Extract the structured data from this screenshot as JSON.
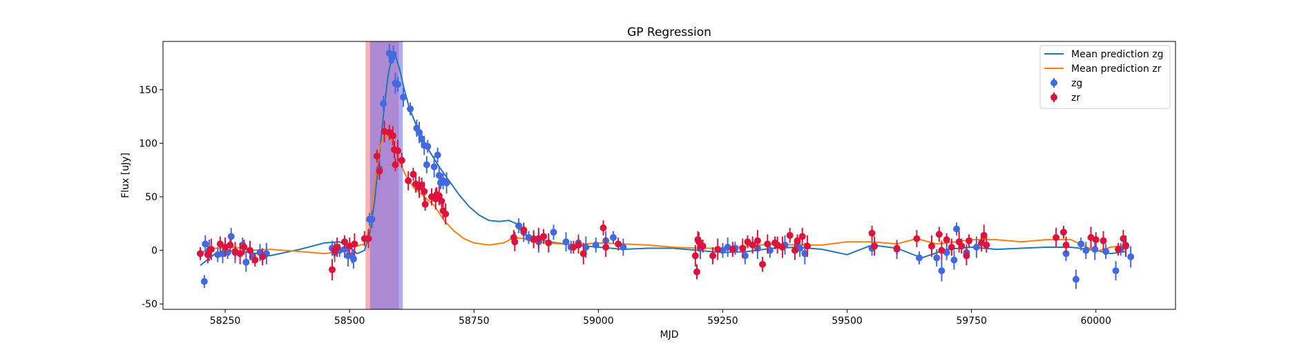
{
  "chart_data": {
    "type": "scatter",
    "title": "GP Regression",
    "xlabel": "MJD",
    "ylabel": "Flux [uJy]",
    "xlim": [
      58125,
      60160
    ],
    "ylim": [
      -55,
      195
    ],
    "x_ticks": [
      58250,
      58500,
      58750,
      59000,
      59250,
      59500,
      59750,
      60000
    ],
    "y_ticks": [
      -50,
      0,
      50,
      100,
      150
    ],
    "grid": false,
    "legend_position": "top-right",
    "highlight_bands": [
      {
        "band": "zr",
        "x": [
          58532,
          58599
        ],
        "color": "#ff6f6f",
        "opacity": 0.55
      },
      {
        "band": "zg",
        "x": [
          58541,
          58607
        ],
        "color": "#6a6af0",
        "opacity": 0.55
      }
    ],
    "series": [
      {
        "name": "Mean prediction zg",
        "kind": "line",
        "color": "#1f77b4",
        "x": [
          58200,
          58230,
          58270,
          58300,
          58340,
          58400,
          58450,
          58480,
          58500,
          58515,
          58530,
          58540,
          58550,
          58560,
          58570,
          58578,
          58585,
          58592,
          58600,
          58610,
          58620,
          58640,
          58660,
          58680,
          58700,
          58720,
          58740,
          58760,
          58780,
          58800,
          58820,
          58835,
          58850,
          58870,
          58900,
          58950,
          59000,
          59050,
          59100,
          59150,
          59200,
          59250,
          59300,
          59350,
          59400,
          59450,
          59500,
          59550,
          59600,
          59650,
          59700,
          59750,
          59800,
          59850,
          59900,
          59950,
          60000,
          60030,
          60060
        ],
        "y": [
          -14,
          -3,
          0,
          -2,
          -5,
          1,
          7,
          8,
          3,
          -3,
          0,
          15,
          45,
          90,
          135,
          165,
          180,
          182,
          170,
          150,
          133,
          110,
          93,
          78,
          65,
          52,
          41,
          33,
          28,
          27,
          28,
          25,
          15,
          12,
          8,
          5,
          3,
          1,
          2,
          2,
          0,
          -2,
          -1,
          2,
          3,
          1,
          -4,
          5,
          2,
          -7,
          1,
          3,
          1,
          2,
          3,
          3,
          0,
          -3,
          -1
        ]
      },
      {
        "name": "Mean prediction zr",
        "kind": "line",
        "color": "#ff7f0e",
        "x": [
          58200,
          58230,
          58270,
          58300,
          58340,
          58400,
          58450,
          58480,
          58500,
          58515,
          58530,
          58540,
          58550,
          58560,
          58570,
          58580,
          58590,
          58600,
          58615,
          58630,
          58650,
          58670,
          58690,
          58710,
          58730,
          58750,
          58780,
          58810,
          58830,
          58850,
          58870,
          58900,
          58950,
          59000,
          59050,
          59100,
          59150,
          59200,
          59250,
          59300,
          59350,
          59400,
          59450,
          59500,
          59550,
          59600,
          59640,
          59680,
          59720,
          59750,
          59800,
          59850,
          59900,
          59950,
          60000,
          60030,
          60060
        ],
        "y": [
          -2,
          2,
          3,
          0,
          1,
          -1,
          -3,
          -1,
          3,
          4,
          6,
          20,
          60,
          95,
          108,
          106,
          97,
          83,
          68,
          58,
          50,
          42,
          28,
          18,
          11,
          7,
          5,
          7,
          12,
          11,
          8,
          7,
          5,
          7,
          6,
          5,
          3,
          2,
          2,
          4,
          6,
          5,
          5,
          8,
          8,
          6,
          11,
          6,
          8,
          10,
          10,
          8,
          10,
          10,
          -1,
          3,
          5
        ]
      },
      {
        "name": "zg",
        "kind": "points",
        "color": "#4169e1",
        "points": [
          [
            58208,
            -29
          ],
          [
            58210,
            6
          ],
          [
            58218,
            0
          ],
          [
            58235,
            -4
          ],
          [
            58245,
            -3
          ],
          [
            58255,
            -2
          ],
          [
            58262,
            13
          ],
          [
            58270,
            -2
          ],
          [
            58285,
            5
          ],
          [
            58292,
            -11
          ],
          [
            58305,
            -6
          ],
          [
            58320,
            -2
          ],
          [
            58333,
            -3
          ],
          [
            58465,
            2
          ],
          [
            58470,
            -2
          ],
          [
            58480,
            0
          ],
          [
            58490,
            1
          ],
          [
            58497,
            -5
          ],
          [
            58505,
            -5
          ],
          [
            58508,
            -8
          ],
          [
            58540,
            29
          ],
          [
            58545,
            29
          ],
          [
            58560,
            76
          ],
          [
            58568,
            137
          ],
          [
            58580,
            184
          ],
          [
            58585,
            180
          ],
          [
            58588,
            183
          ],
          [
            58592,
            156
          ],
          [
            58597,
            155
          ],
          [
            58608,
            143
          ],
          [
            58622,
            132
          ],
          [
            58635,
            114
          ],
          [
            58640,
            110
          ],
          [
            58645,
            104
          ],
          [
            58650,
            98
          ],
          [
            58657,
            97
          ],
          [
            58655,
            80
          ],
          [
            58670,
            78
          ],
          [
            58677,
            89
          ],
          [
            58680,
            70
          ],
          [
            58683,
            63
          ],
          [
            58688,
            65
          ],
          [
            58695,
            63
          ],
          [
            58840,
            23
          ],
          [
            58850,
            17
          ],
          [
            58860,
            12
          ],
          [
            58870,
            11
          ],
          [
            58880,
            8
          ],
          [
            58910,
            17
          ],
          [
            58935,
            8
          ],
          [
            58945,
            3
          ],
          [
            58960,
            7
          ],
          [
            58975,
            3
          ],
          [
            58995,
            5
          ],
          [
            59015,
            9
          ],
          [
            59030,
            12
          ],
          [
            59050,
            3
          ],
          [
            59205,
            2
          ],
          [
            59250,
            0
          ],
          [
            59260,
            3
          ],
          [
            59275,
            2
          ],
          [
            59295,
            -5
          ],
          [
            59320,
            2
          ],
          [
            59345,
            0
          ],
          [
            59375,
            5
          ],
          [
            59400,
            4
          ],
          [
            59405,
            2
          ],
          [
            59415,
            -3
          ],
          [
            59550,
            2
          ],
          [
            59600,
            1
          ],
          [
            59645,
            -7
          ],
          [
            59680,
            -7
          ],
          [
            59690,
            -19
          ],
          [
            59700,
            -2
          ],
          [
            59715,
            -9
          ],
          [
            59720,
            20
          ],
          [
            59740,
            -2
          ],
          [
            59760,
            3
          ],
          [
            59940,
            -3
          ],
          [
            59960,
            -27
          ],
          [
            59970,
            6
          ],
          [
            59980,
            0
          ],
          [
            59998,
            1
          ],
          [
            60020,
            -1
          ],
          [
            60040,
            -19
          ],
          [
            60050,
            1
          ],
          [
            60060,
            5
          ],
          [
            60070,
            -6
          ]
        ]
      },
      {
        "name": "zr",
        "kind": "points",
        "color": "#dc143c",
        "points": [
          [
            58200,
            -3
          ],
          [
            58215,
            -4
          ],
          [
            58222,
            1
          ],
          [
            58240,
            6
          ],
          [
            58250,
            3
          ],
          [
            58260,
            5
          ],
          [
            58270,
            -1
          ],
          [
            58280,
            -3
          ],
          [
            58288,
            3
          ],
          [
            58300,
            0
          ],
          [
            58310,
            -9
          ],
          [
            58325,
            -6
          ],
          [
            58465,
            -18
          ],
          [
            58470,
            0
          ],
          [
            58475,
            3
          ],
          [
            58490,
            8
          ],
          [
            58500,
            4
          ],
          [
            58510,
            6
          ],
          [
            58530,
            11
          ],
          [
            58538,
            11
          ],
          [
            58555,
            88
          ],
          [
            58560,
            74
          ],
          [
            58570,
            111
          ],
          [
            58580,
            110
          ],
          [
            58587,
            107
          ],
          [
            58592,
            80
          ],
          [
            58590,
            94
          ],
          [
            58597,
            93
          ],
          [
            58605,
            84
          ],
          [
            58618,
            65
          ],
          [
            58628,
            71
          ],
          [
            58633,
            62
          ],
          [
            58640,
            59
          ],
          [
            58645,
            61
          ],
          [
            58650,
            55
          ],
          [
            58652,
            43
          ],
          [
            58665,
            50
          ],
          [
            58673,
            48
          ],
          [
            58675,
            52
          ],
          [
            58680,
            51
          ],
          [
            58685,
            46
          ],
          [
            58688,
            37
          ],
          [
            58693,
            34
          ],
          [
            58830,
            12
          ],
          [
            58832,
            8
          ],
          [
            58850,
            19
          ],
          [
            58870,
            10
          ],
          [
            58880,
            11
          ],
          [
            58890,
            13
          ],
          [
            58900,
            7
          ],
          [
            58950,
            3
          ],
          [
            58960,
            5
          ],
          [
            58970,
            -3
          ],
          [
            59010,
            21
          ],
          [
            59015,
            3
          ],
          [
            59040,
            6
          ],
          [
            59200,
            10
          ],
          [
            59195,
            -5
          ],
          [
            59198,
            -20
          ],
          [
            59202,
            8
          ],
          [
            59210,
            4
          ],
          [
            59230,
            -5
          ],
          [
            59240,
            1
          ],
          [
            59270,
            1
          ],
          [
            59290,
            2
          ],
          [
            59300,
            8
          ],
          [
            59310,
            5
          ],
          [
            59320,
            9
          ],
          [
            59330,
            -13
          ],
          [
            59340,
            6
          ],
          [
            59355,
            7
          ],
          [
            59360,
            5
          ],
          [
            59370,
            3
          ],
          [
            59385,
            14
          ],
          [
            59395,
            0
          ],
          [
            59400,
            9
          ],
          [
            59410,
            13
          ],
          [
            59420,
            4
          ],
          [
            59550,
            16
          ],
          [
            59555,
            4
          ],
          [
            59600,
            2
          ],
          [
            59640,
            11
          ],
          [
            59670,
            4
          ],
          [
            59685,
            15
          ],
          [
            59690,
            0
          ],
          [
            59700,
            10
          ],
          [
            59710,
            3
          ],
          [
            59725,
            8
          ],
          [
            59730,
            4
          ],
          [
            59740,
            -5
          ],
          [
            59745,
            9
          ],
          [
            59770,
            7
          ],
          [
            59775,
            14
          ],
          [
            59780,
            5
          ],
          [
            59920,
            12
          ],
          [
            59935,
            17
          ],
          [
            59940,
            5
          ],
          [
            59990,
            12
          ],
          [
            60000,
            10
          ],
          [
            60015,
            9
          ],
          [
            60045,
            1
          ],
          [
            60055,
            11
          ],
          [
            60060,
            4
          ]
        ]
      }
    ]
  }
}
